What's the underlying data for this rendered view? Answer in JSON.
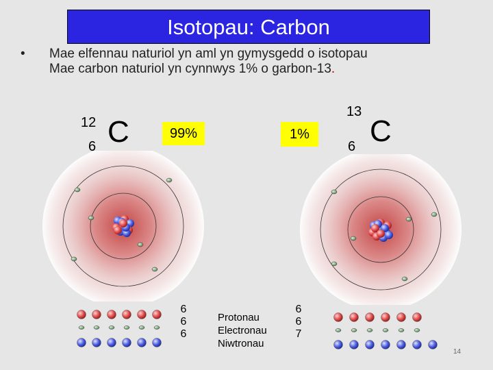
{
  "title": "Isotopau:   Carbon",
  "bullet": {
    "symbol": "•",
    "line1": "Mae elfennau naturiol yn aml yn gymysgedd o isotopau",
    "line2_main": "Mae carbon naturiol yn cynnwys 1% o garbon-13",
    "line2_period": "."
  },
  "left_isotope": {
    "mass_number": "12",
    "atomic_number": "6",
    "symbol": "C",
    "percent": "99%",
    "counts": [
      "6",
      "6",
      "6"
    ]
  },
  "right_isotope": {
    "mass_number": "13",
    "atomic_number": "6",
    "symbol": "C",
    "percent": "1%",
    "counts": [
      "6",
      "6",
      "7"
    ]
  },
  "legend": [
    "Protonau",
    "Electronau",
    "Niwtronau"
  ],
  "page_number": "14",
  "colors": {
    "title_bg": "#2b24e0",
    "highlight": "#ffff00",
    "proton": "#e05050",
    "neutron": "#5060e0",
    "electron": "#6a9a6a",
    "cloud": "#c84040"
  }
}
